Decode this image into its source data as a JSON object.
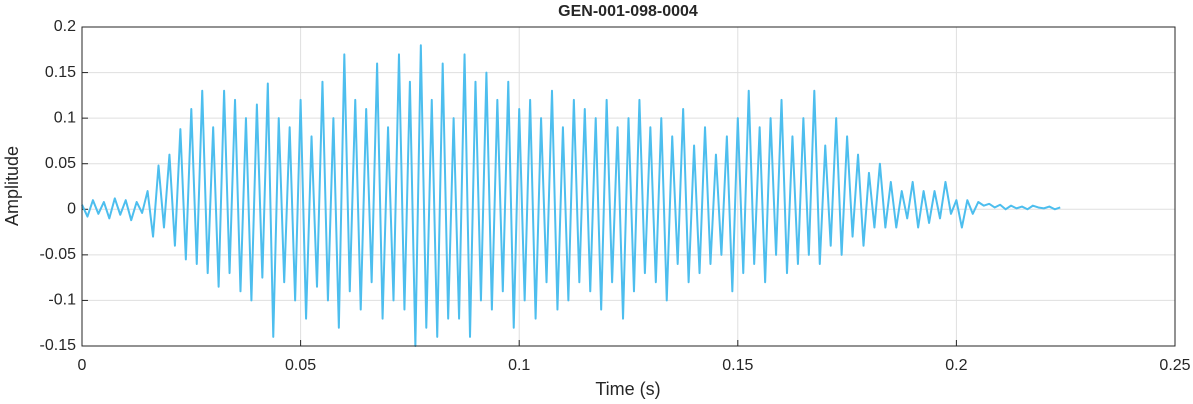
{
  "chart_data": {
    "type": "line",
    "title": "GEN-001-098-0004",
    "x_label": "Time (s)",
    "y_label": "Amplitude",
    "xlim": [
      0,
      0.25
    ],
    "xticks": [
      0,
      0.05,
      0.1,
      0.15,
      0.2,
      0.25
    ],
    "ylim": [
      -0.15,
      0.2
    ],
    "yticks": [
      -0.15,
      -0.1,
      -0.05,
      0,
      0.05,
      0.1,
      0.15,
      0.2
    ],
    "grid": true,
    "x": [
      0,
      0.00125,
      0.0025,
      0.00375,
      0.005,
      0.00625,
      0.0075,
      0.00875,
      0.01,
      0.01125,
      0.0125,
      0.01375,
      0.015,
      0.01625,
      0.0175,
      0.01875,
      0.02,
      0.02125,
      0.0225,
      0.02375,
      0.025,
      0.02625,
      0.0275,
      0.02875,
      0.03,
      0.03125,
      0.0325,
      0.03375,
      0.035,
      0.03625,
      0.0375,
      0.03875,
      0.04,
      0.04125,
      0.0425,
      0.04375,
      0.045,
      0.04625,
      0.0475,
      0.04875,
      0.05,
      0.05125,
      0.0525,
      0.05375,
      0.055,
      0.05625,
      0.0575,
      0.05875,
      0.06,
      0.06125,
      0.0625,
      0.06375,
      0.065,
      0.06625,
      0.0675,
      0.06875,
      0.07,
      0.07125,
      0.0725,
      0.07375,
      0.075,
      0.07625,
      0.0775,
      0.07875,
      0.08,
      0.08125,
      0.0825,
      0.08375,
      0.085,
      0.08625,
      0.0875,
      0.08875,
      0.09,
      0.09125,
      0.0925,
      0.09375,
      0.095,
      0.09625,
      0.0975,
      0.09875,
      0.1,
      0.10125,
      0.1025,
      0.10375,
      0.105,
      0.10625,
      0.1075,
      0.10875,
      0.11,
      0.11125,
      0.1125,
      0.11375,
      0.115,
      0.11625,
      0.1175,
      0.11875,
      0.12,
      0.12125,
      0.1225,
      0.12375,
      0.125,
      0.12625,
      0.1275,
      0.12875,
      0.13,
      0.13125,
      0.1325,
      0.13375,
      0.135,
      0.13625,
      0.1375,
      0.13875,
      0.14,
      0.14125,
      0.1425,
      0.14375,
      0.145,
      0.14625,
      0.1475,
      0.14875,
      0.15,
      0.15125,
      0.1525,
      0.15375,
      0.155,
      0.15625,
      0.1575,
      0.15875,
      0.16,
      0.16125,
      0.1625,
      0.16375,
      0.165,
      0.16625,
      0.1675,
      0.16875,
      0.17,
      0.17125,
      0.1725,
      0.17375,
      0.175,
      0.17625,
      0.1775,
      0.17875,
      0.18,
      0.18125,
      0.1825,
      0.18375,
      0.185,
      0.18625,
      0.1875,
      0.18875,
      0.19,
      0.19125,
      0.1925,
      0.19375,
      0.195,
      0.19625,
      0.1975,
      0.19875,
      0.2,
      0.20125,
      0.2025,
      0.20375,
      0.205,
      0.20625,
      0.2075,
      0.20875,
      0.21,
      0.21125,
      0.2125,
      0.21375,
      0.215,
      0.21625,
      0.2175,
      0.21875,
      0.22,
      0.22125,
      0.2225,
      0.22375
    ],
    "series": [
      {
        "color": "#4dbeee",
        "values": [
          0.005,
          -0.008,
          0.01,
          -0.005,
          0.008,
          -0.01,
          0.012,
          -0.006,
          0.01,
          -0.012,
          0.008,
          -0.004,
          0.02,
          -0.03,
          0.048,
          -0.02,
          0.06,
          -0.04,
          0.088,
          -0.055,
          0.11,
          -0.06,
          0.13,
          -0.07,
          0.09,
          -0.085,
          0.13,
          -0.07,
          0.12,
          -0.09,
          0.1,
          -0.1,
          0.115,
          -0.075,
          0.138,
          -0.14,
          0.1,
          -0.08,
          0.09,
          -0.1,
          0.12,
          -0.12,
          0.08,
          -0.085,
          0.14,
          -0.1,
          0.1,
          -0.13,
          0.17,
          -0.09,
          0.12,
          -0.11,
          0.11,
          -0.08,
          0.16,
          -0.12,
          0.09,
          -0.1,
          0.17,
          -0.11,
          0.14,
          -0.15,
          0.18,
          -0.13,
          0.12,
          -0.14,
          0.16,
          -0.12,
          0.1,
          -0.12,
          0.17,
          -0.14,
          0.14,
          -0.1,
          0.15,
          -0.11,
          0.12,
          -0.09,
          0.14,
          -0.13,
          0.11,
          -0.1,
          0.12,
          -0.12,
          0.1,
          -0.08,
          0.13,
          -0.11,
          0.09,
          -0.1,
          0.12,
          -0.08,
          0.11,
          -0.09,
          0.1,
          -0.11,
          0.12,
          -0.08,
          0.09,
          -0.12,
          0.1,
          -0.09,
          0.12,
          -0.07,
          0.09,
          -0.08,
          0.1,
          -0.1,
          0.08,
          -0.06,
          0.11,
          -0.08,
          0.07,
          -0.07,
          0.09,
          -0.06,
          0.06,
          -0.05,
          0.08,
          -0.09,
          0.1,
          -0.07,
          0.13,
          -0.06,
          0.09,
          -0.08,
          0.1,
          -0.05,
          0.12,
          -0.07,
          0.08,
          -0.06,
          0.1,
          -0.05,
          0.13,
          -0.06,
          0.07,
          -0.04,
          0.1,
          -0.05,
          0.08,
          -0.03,
          0.06,
          -0.04,
          0.04,
          -0.02,
          0.05,
          -0.02,
          0.03,
          -0.02,
          0.02,
          -0.01,
          0.03,
          -0.02,
          0.02,
          -0.015,
          0.02,
          -0.01,
          0.03,
          -0.005,
          0.01,
          -0.02,
          0.01,
          -0.005,
          0.008,
          0.004,
          0.006,
          0.002,
          0.005,
          0,
          0.004,
          0.001,
          0.003,
          0,
          0.004,
          0.002,
          0.001,
          0.003,
          0,
          0.002
        ]
      }
    ]
  }
}
